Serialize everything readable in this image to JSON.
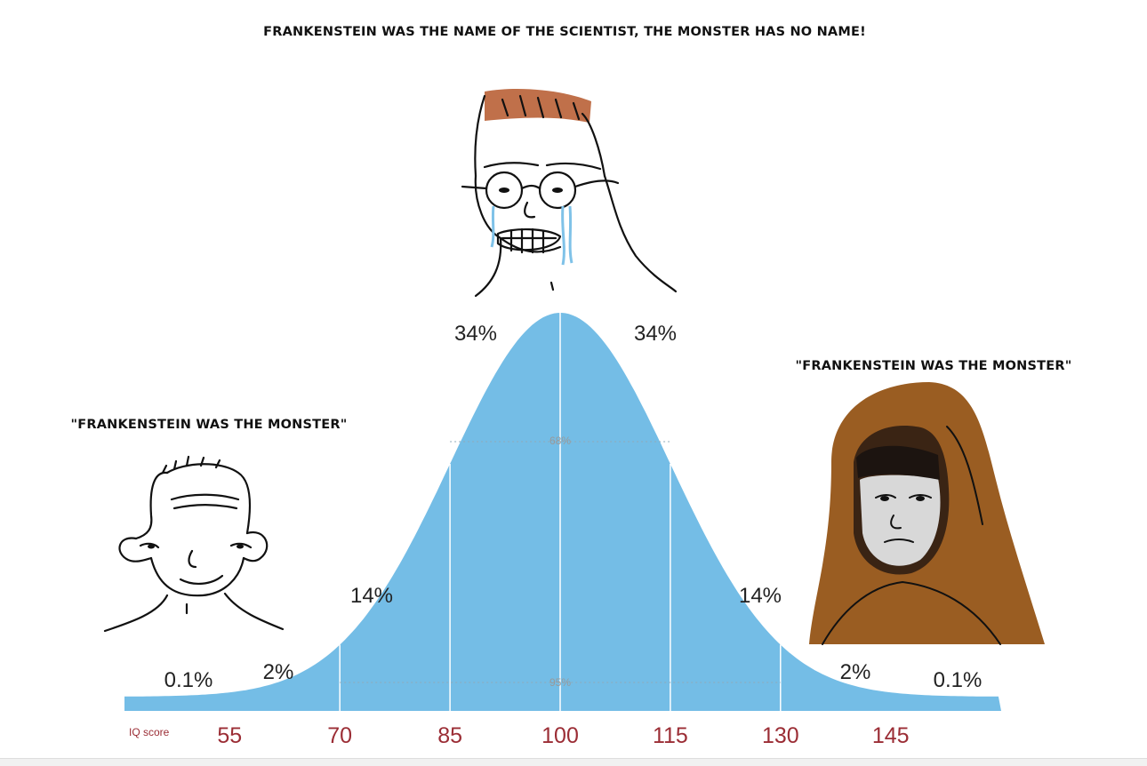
{
  "captions": {
    "top": "FRANKENSTEIN WAS THE NAME OF THE SCIENTIST, THE MONSTER HAS NO NAME!",
    "left": "\"FRANKENSTEIN WAS THE MONSTER\"",
    "right": "\"FRANKENSTEIN WAS THE MONSTER\""
  },
  "colors": {
    "curve_fill": "#74bde6",
    "tick_label": "#9b2d35",
    "divider": "#ffffff"
  },
  "chart_data": {
    "type": "area",
    "distribution": "normal",
    "mean": 100,
    "sd": 15,
    "xlabel": "IQ score",
    "x_ticks": [
      55,
      70,
      85,
      100,
      115,
      130,
      145
    ],
    "segment_percentages": [
      "0.1%",
      "2%",
      "14%",
      "34%",
      "34%",
      "14%",
      "2%",
      "0.1%"
    ],
    "inner_labels": [
      "68%",
      "95%"
    ]
  },
  "icons": {
    "left_character": "wojak-smiling-icon",
    "top_character": "crying-glasses-wojak-icon",
    "right_character": "hooded-wojak-icon"
  }
}
